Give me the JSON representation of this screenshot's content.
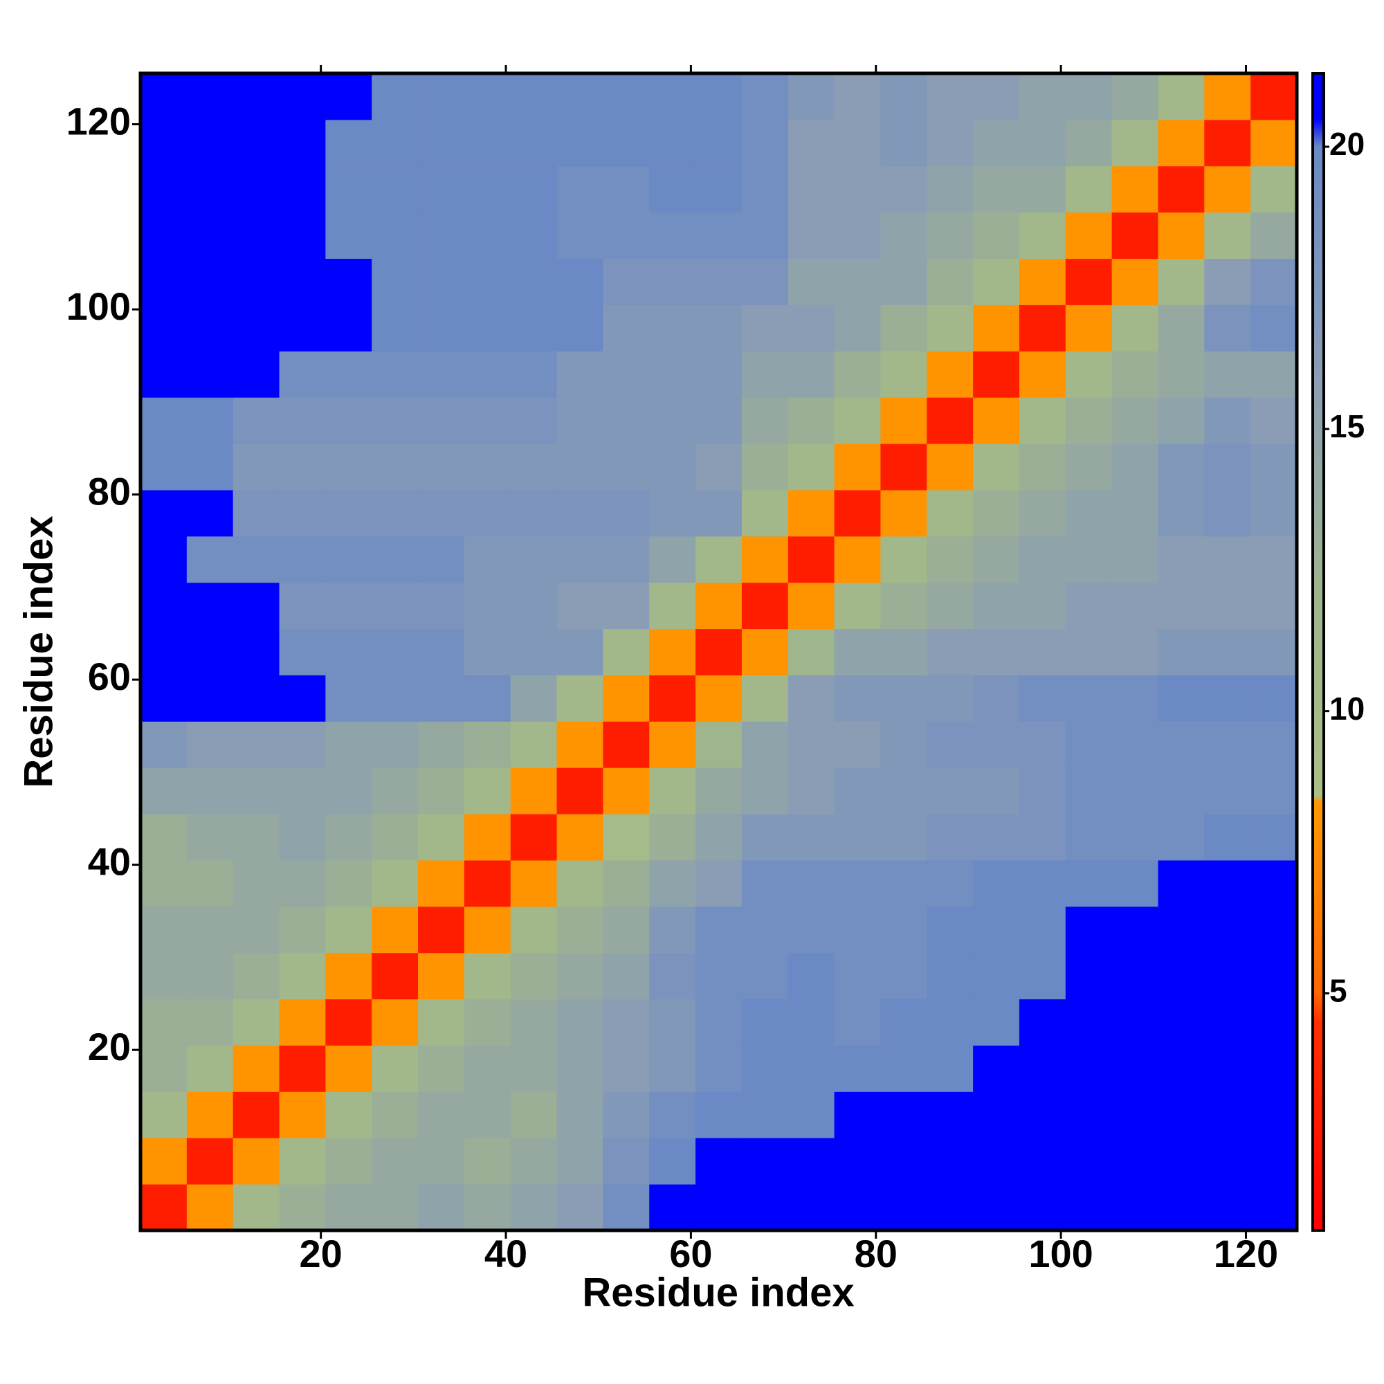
{
  "chart_data": {
    "type": "heatmap",
    "xlabel": "Residue index",
    "ylabel": "Residue index",
    "xlim": [
      0.5,
      125.5
    ],
    "ylim": [
      0.5,
      125.5
    ],
    "xticks": [
      20,
      40,
      60,
      80,
      100,
      120
    ],
    "yticks": [
      20,
      40,
      60,
      80,
      100,
      120
    ],
    "xbins": [
      0.5,
      5.5,
      10.5,
      15.5,
      20.5,
      25.5,
      30.5,
      35.5,
      40.5,
      45.5,
      50.5,
      55.5,
      60.5,
      65.5,
      70.5,
      75.5,
      80.5,
      85.5,
      90.5,
      95.5,
      100.5,
      105.5,
      110.5,
      115.5,
      120.5,
      125.5
    ],
    "ybins": [
      0.5,
      5.5,
      10.5,
      15.5,
      20.5,
      25.5,
      30.5,
      35.5,
      40.5,
      45.5,
      50.5,
      55.5,
      60.5,
      65.5,
      70.5,
      75.5,
      80.5,
      85.5,
      90.5,
      95.5,
      100.5,
      105.5,
      110.5,
      115.5,
      120.5,
      125.5
    ],
    "values": [
      [
        3,
        8,
        11,
        13,
        14,
        14,
        15,
        14,
        15,
        16,
        19,
        21,
        21,
        21,
        21,
        21,
        21,
        21,
        21,
        21,
        21,
        21,
        21,
        21,
        21
      ],
      [
        8,
        3,
        8,
        11,
        13,
        14,
        14,
        13,
        14,
        15,
        18,
        20,
        21,
        21,
        21,
        21,
        21,
        21,
        21,
        21,
        21,
        21,
        21,
        21,
        21
      ],
      [
        11,
        8,
        3,
        8,
        11,
        13,
        14,
        14,
        13,
        15,
        17,
        19,
        20,
        20,
        20,
        21,
        21,
        21,
        21,
        21,
        21,
        21,
        21,
        21,
        21
      ],
      [
        13,
        11,
        8,
        3,
        8,
        11,
        13,
        14,
        14,
        15,
        16,
        17,
        19,
        20,
        20,
        20,
        20,
        20,
        21,
        21,
        21,
        21,
        21,
        21,
        21
      ],
      [
        13,
        13,
        11,
        8,
        3,
        8,
        11,
        13,
        14,
        15,
        16,
        17,
        19,
        20,
        20,
        19,
        20,
        20,
        20,
        21,
        21,
        21,
        21,
        21,
        21
      ],
      [
        14,
        14,
        13,
        11,
        8,
        3,
        8,
        11,
        13,
        14,
        15,
        18,
        19,
        19,
        20,
        19,
        19,
        20,
        20,
        20,
        21,
        21,
        21,
        21,
        21
      ],
      [
        14,
        14,
        14,
        13,
        11,
        8,
        3,
        8,
        11,
        13,
        14,
        17,
        19,
        19,
        19,
        19,
        19,
        20,
        20,
        20,
        21,
        21,
        21,
        21,
        21
      ],
      [
        13,
        13,
        14,
        14,
        13,
        11,
        8,
        3,
        8,
        11,
        13,
        15,
        16,
        19,
        19,
        19,
        19,
        19,
        20,
        20,
        20,
        20,
        21,
        21,
        21
      ],
      [
        13,
        14,
        14,
        15,
        14,
        13,
        11,
        8,
        3,
        8,
        10,
        13,
        15,
        17,
        17,
        17,
        17,
        18,
        18,
        18,
        19,
        19,
        19,
        20,
        20
      ],
      [
        15,
        15,
        15,
        15,
        15,
        14,
        13,
        11,
        8,
        3,
        8,
        11,
        14,
        15,
        16,
        17,
        17,
        17,
        17,
        18,
        19,
        19,
        19,
        19,
        19
      ],
      [
        17,
        16,
        16,
        16,
        15,
        15,
        14,
        13,
        11,
        8,
        3,
        8,
        12,
        15,
        16,
        16,
        17,
        18,
        18,
        18,
        19,
        19,
        19,
        19,
        19
      ],
      [
        21,
        21,
        21,
        21,
        19,
        19,
        19,
        19,
        15,
        11,
        8,
        3,
        8,
        11,
        16,
        17,
        17,
        17,
        18,
        19,
        19,
        19,
        20,
        20,
        20
      ],
      [
        21,
        21,
        21,
        19,
        19,
        19,
        19,
        17,
        17,
        17,
        11,
        8,
        3,
        8,
        12,
        15,
        15,
        16,
        16,
        16,
        16,
        16,
        17,
        17,
        17
      ],
      [
        21,
        21,
        21,
        18,
        18,
        18,
        18,
        17,
        17,
        16,
        16,
        11,
        8,
        3,
        8,
        11,
        13,
        14,
        15,
        15,
        16,
        16,
        16,
        16,
        16
      ],
      [
        21,
        19,
        19,
        19,
        19,
        19,
        19,
        17,
        17,
        17,
        17,
        15,
        11,
        8,
        3,
        8,
        11,
        13,
        14,
        15,
        15,
        15,
        16,
        16,
        16
      ],
      [
        21,
        21,
        18,
        18,
        18,
        18,
        18,
        18,
        18,
        18,
        18,
        17,
        17,
        11,
        8,
        3,
        8,
        11,
        13,
        14,
        15,
        15,
        17,
        18,
        17
      ],
      [
        20,
        20,
        17,
        17,
        17,
        17,
        17,
        17,
        17,
        17,
        17,
        17,
        16,
        13,
        11,
        8,
        3,
        8,
        11,
        13,
        14,
        15,
        17,
        18,
        17
      ],
      [
        20,
        20,
        18,
        18,
        18,
        18,
        18,
        18,
        18,
        17,
        17,
        17,
        17,
        14,
        13,
        11,
        8,
        3,
        8,
        11,
        13,
        14,
        15,
        17,
        16
      ],
      [
        21,
        21,
        21,
        19,
        19,
        19,
        19,
        19,
        19,
        17,
        17,
        17,
        17,
        15,
        15,
        13,
        11,
        8,
        3,
        8,
        11,
        13,
        14,
        15,
        15
      ],
      [
        21,
        21,
        21,
        21,
        21,
        20,
        20,
        20,
        20,
        20,
        17,
        17,
        17,
        16,
        16,
        15,
        13,
        11,
        8,
        3,
        8,
        11,
        14,
        18,
        19
      ],
      [
        21,
        21,
        21,
        21,
        21,
        20,
        20,
        20,
        20,
        20,
        18,
        18,
        18,
        18,
        15,
        15,
        15,
        13,
        11,
        8,
        3,
        8,
        11,
        16,
        18
      ],
      [
        21,
        21,
        21,
        21,
        20,
        20,
        20,
        20,
        20,
        19,
        19,
        19,
        19,
        19,
        16,
        16,
        15,
        14,
        13,
        11,
        8,
        3,
        8,
        11,
        14
      ],
      [
        21,
        21,
        21,
        21,
        20,
        20,
        20,
        20,
        20,
        19,
        19,
        20,
        20,
        19,
        16,
        16,
        16,
        15,
        14,
        14,
        11,
        8,
        3,
        8,
        11
      ],
      [
        21,
        21,
        21,
        21,
        20,
        20,
        20,
        20,
        20,
        20,
        20,
        20,
        20,
        19,
        16,
        16,
        17,
        16,
        15,
        15,
        14,
        11,
        8,
        3,
        8
      ],
      [
        21,
        21,
        21,
        21,
        21,
        20,
        20,
        20,
        20,
        20,
        20,
        20,
        20,
        19,
        17,
        16,
        17,
        16,
        16,
        15,
        15,
        14,
        11,
        8,
        3
      ]
    ],
    "colorbar": {
      "lim": [
        0.8,
        21.3
      ],
      "ticks": [
        5,
        10,
        15,
        20
      ]
    },
    "colormap": [
      [
        0.8,
        "#ff0000"
      ],
      [
        4.5,
        "#ff3000"
      ],
      [
        5,
        "#ff6600"
      ],
      [
        8.4,
        "#ff9900"
      ],
      [
        8.5,
        "#aabf86"
      ],
      [
        12,
        "#9fb58c"
      ],
      [
        16,
        "#8a9db5"
      ],
      [
        20,
        "#6b89c4"
      ],
      [
        20.5,
        "#0000ff"
      ],
      [
        21.3,
        "#0000ff"
      ]
    ]
  }
}
